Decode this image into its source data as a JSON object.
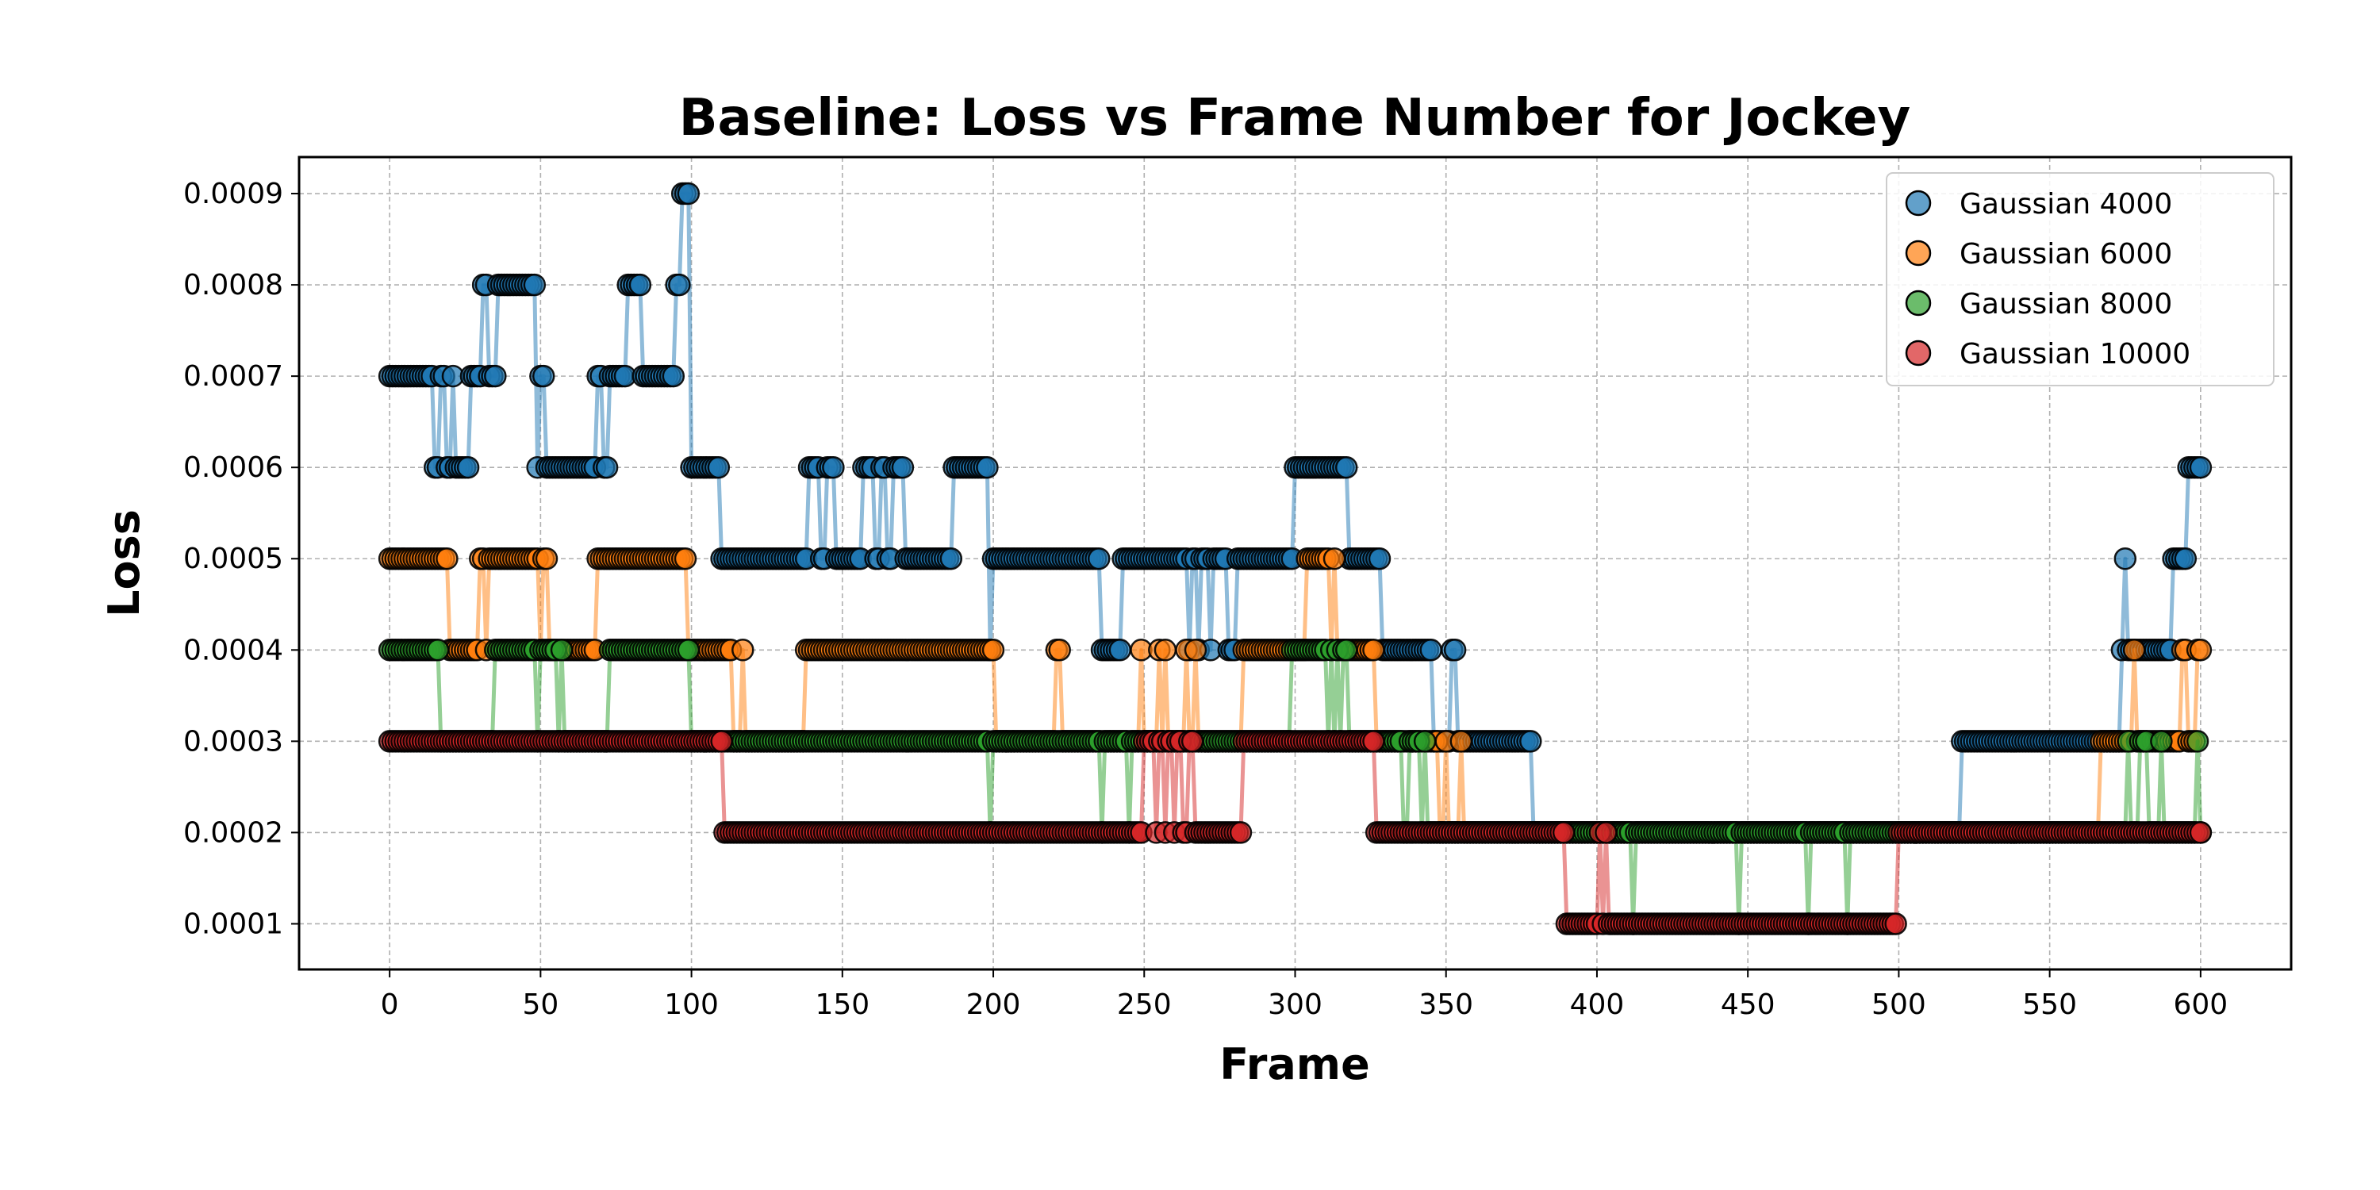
{
  "chart_data": {
    "type": "scatter",
    "title": "Baseline: Loss vs Frame Number for Jockey",
    "xlabel": "Frame",
    "ylabel": "Loss",
    "xlim": [
      -30,
      630
    ],
    "ylim": [
      5e-05,
      0.00094
    ],
    "xticks": [
      0,
      50,
      100,
      150,
      200,
      250,
      300,
      350,
      400,
      450,
      500,
      550,
      600
    ],
    "yticks": [
      0.0001,
      0.0002,
      0.0003,
      0.0004,
      0.0005,
      0.0006,
      0.0007,
      0.0008,
      0.0009
    ],
    "ytick_labels": [
      "0.0001",
      "0.0002",
      "0.0003",
      "0.0004",
      "0.0005",
      "0.0006",
      "0.0007",
      "0.0008",
      "0.0009"
    ],
    "grid": true,
    "legend_position": "top-right",
    "series": [
      {
        "name": "Gaussian 4000",
        "color": "#1f77b4",
        "segments": [
          [
            0,
            14,
            0.0007
          ],
          [
            15,
            16,
            0.0006
          ],
          [
            17,
            18,
            0.0007
          ],
          [
            19,
            20,
            0.0006
          ],
          [
            21,
            21,
            0.0007
          ],
          [
            22,
            26,
            0.0006
          ],
          [
            27,
            30,
            0.0007
          ],
          [
            31,
            32,
            0.0008
          ],
          [
            33,
            35,
            0.0007
          ],
          [
            36,
            48,
            0.0008
          ],
          [
            49,
            49,
            0.0006
          ],
          [
            50,
            51,
            0.0007
          ],
          [
            52,
            68,
            0.0006
          ],
          [
            69,
            70,
            0.0007
          ],
          [
            71,
            72,
            0.0006
          ],
          [
            73,
            78,
            0.0007
          ],
          [
            79,
            83,
            0.0008
          ],
          [
            84,
            94,
            0.0007
          ],
          [
            95,
            96,
            0.0008
          ],
          [
            97,
            99,
            0.0009
          ],
          [
            100,
            109,
            0.0006
          ],
          [
            110,
            138,
            0.0005
          ],
          [
            139,
            142,
            0.0006
          ],
          [
            143,
            144,
            0.0005
          ],
          [
            145,
            147,
            0.0006
          ],
          [
            148,
            156,
            0.0005
          ],
          [
            157,
            160,
            0.0006
          ],
          [
            161,
            162,
            0.0005
          ],
          [
            163,
            164,
            0.0006
          ],
          [
            165,
            166,
            0.0005
          ],
          [
            167,
            170,
            0.0006
          ],
          [
            171,
            186,
            0.0005
          ],
          [
            187,
            198,
            0.0006
          ],
          [
            199,
            199,
            0.0004
          ],
          [
            200,
            235,
            0.0005
          ],
          [
            236,
            242,
            0.0004
          ],
          [
            243,
            264,
            0.0005
          ],
          [
            265,
            265,
            0.0004
          ],
          [
            266,
            267,
            0.0005
          ],
          [
            268,
            268,
            0.0004
          ],
          [
            269,
            271,
            0.0005
          ],
          [
            272,
            272,
            0.0004
          ],
          [
            273,
            277,
            0.0005
          ],
          [
            278,
            280,
            0.0004
          ],
          [
            281,
            299,
            0.0005
          ],
          [
            300,
            317,
            0.0006
          ],
          [
            318,
            328,
            0.0005
          ],
          [
            329,
            345,
            0.0004
          ],
          [
            346,
            351,
            0.0003
          ],
          [
            352,
            353,
            0.0004
          ],
          [
            354,
            378,
            0.0003
          ],
          [
            379,
            520,
            0.0002
          ],
          [
            521,
            573,
            0.0003
          ],
          [
            574,
            574,
            0.0004
          ],
          [
            575,
            575,
            0.0005
          ],
          [
            576,
            590,
            0.0004
          ],
          [
            591,
            595,
            0.0005
          ],
          [
            596,
            600,
            0.0006
          ]
        ]
      },
      {
        "name": "Gaussian 6000",
        "color": "#ff7f0e",
        "segments": [
          [
            0,
            19,
            0.0005
          ],
          [
            20,
            29,
            0.0004
          ],
          [
            30,
            31,
            0.0005
          ],
          [
            32,
            32,
            0.0004
          ],
          [
            33,
            49,
            0.0005
          ],
          [
            50,
            50,
            0.0004
          ],
          [
            51,
            52,
            0.0005
          ],
          [
            53,
            68,
            0.0004
          ],
          [
            69,
            98,
            0.0005
          ],
          [
            99,
            99,
            0.0004
          ],
          [
            100,
            113,
            0.0004
          ],
          [
            114,
            116,
            0.0003
          ],
          [
            117,
            117,
            0.0004
          ],
          [
            118,
            137,
            0.0003
          ],
          [
            138,
            200,
            0.0004
          ],
          [
            201,
            220,
            0.0003
          ],
          [
            221,
            222,
            0.0004
          ],
          [
            223,
            248,
            0.0003
          ],
          [
            249,
            249,
            0.0004
          ],
          [
            250,
            254,
            0.0003
          ],
          [
            255,
            255,
            0.0004
          ],
          [
            256,
            256,
            0.0003
          ],
          [
            257,
            257,
            0.0004
          ],
          [
            258,
            263,
            0.0003
          ],
          [
            264,
            264,
            0.0004
          ],
          [
            265,
            266,
            0.0003
          ],
          [
            267,
            267,
            0.0004
          ],
          [
            268,
            282,
            0.0003
          ],
          [
            283,
            303,
            0.0004
          ],
          [
            304,
            311,
            0.0005
          ],
          [
            312,
            312,
            0.0004
          ],
          [
            313,
            313,
            0.0005
          ],
          [
            314,
            326,
            0.0004
          ],
          [
            327,
            327,
            0.0003
          ],
          [
            328,
            347,
            0.0003
          ],
          [
            348,
            349,
            0.0002
          ],
          [
            350,
            350,
            0.0003
          ],
          [
            351,
            354,
            0.0002
          ],
          [
            355,
            355,
            0.0003
          ],
          [
            356,
            566,
            0.0002
          ],
          [
            567,
            577,
            0.0003
          ],
          [
            578,
            578,
            0.0004
          ],
          [
            579,
            593,
            0.0003
          ],
          [
            594,
            595,
            0.0004
          ],
          [
            596,
            598,
            0.0003
          ],
          [
            599,
            600,
            0.0004
          ]
        ]
      },
      {
        "name": "Gaussian 8000",
        "color": "#2ca02c",
        "segments": [
          [
            0,
            16,
            0.0004
          ],
          [
            17,
            34,
            0.0003
          ],
          [
            35,
            48,
            0.0004
          ],
          [
            49,
            49,
            0.0003
          ],
          [
            50,
            55,
            0.0004
          ],
          [
            56,
            56,
            0.0003
          ],
          [
            57,
            57,
            0.0004
          ],
          [
            58,
            72,
            0.0003
          ],
          [
            73,
            99,
            0.0004
          ],
          [
            100,
            198,
            0.0003
          ],
          [
            199,
            199,
            0.0002
          ],
          [
            200,
            235,
            0.0003
          ],
          [
            236,
            236,
            0.0002
          ],
          [
            237,
            244,
            0.0003
          ],
          [
            245,
            245,
            0.0002
          ],
          [
            246,
            298,
            0.0003
          ],
          [
            299,
            310,
            0.0004
          ],
          [
            311,
            311,
            0.0003
          ],
          [
            312,
            312,
            0.0004
          ],
          [
            313,
            313,
            0.0003
          ],
          [
            314,
            314,
            0.0004
          ],
          [
            315,
            315,
            0.0003
          ],
          [
            316,
            317,
            0.0004
          ],
          [
            318,
            335,
            0.0003
          ],
          [
            336,
            337,
            0.0002
          ],
          [
            338,
            341,
            0.0003
          ],
          [
            342,
            342,
            0.0002
          ],
          [
            343,
            343,
            0.0003
          ],
          [
            344,
            411,
            0.0002
          ],
          [
            412,
            412,
            0.0001
          ],
          [
            413,
            446,
            0.0002
          ],
          [
            447,
            447,
            0.0001
          ],
          [
            448,
            469,
            0.0002
          ],
          [
            470,
            470,
            0.0001
          ],
          [
            471,
            482,
            0.0002
          ],
          [
            483,
            483,
            0.0001
          ],
          [
            484,
            575,
            0.0002
          ],
          [
            576,
            576,
            0.0003
          ],
          [
            577,
            579,
            0.0002
          ],
          [
            580,
            582,
            0.0003
          ],
          [
            583,
            586,
            0.0002
          ],
          [
            587,
            587,
            0.0003
          ],
          [
            588,
            598,
            0.0002
          ],
          [
            599,
            599,
            0.0003
          ],
          [
            600,
            600,
            0.0002
          ]
        ]
      },
      {
        "name": "Gaussian 10000",
        "color": "#d62728",
        "segments": [
          [
            0,
            110,
            0.0003
          ],
          [
            111,
            249,
            0.0002
          ],
          [
            250,
            253,
            0.0003
          ],
          [
            254,
            254,
            0.0002
          ],
          [
            255,
            256,
            0.0003
          ],
          [
            257,
            257,
            0.0002
          ],
          [
            258,
            259,
            0.0003
          ],
          [
            260,
            260,
            0.0002
          ],
          [
            261,
            262,
            0.0003
          ],
          [
            263,
            264,
            0.0002
          ],
          [
            265,
            266,
            0.0003
          ],
          [
            267,
            282,
            0.0002
          ],
          [
            283,
            326,
            0.0003
          ],
          [
            327,
            389,
            0.0002
          ],
          [
            390,
            400,
            0.0001
          ],
          [
            401,
            401,
            0.0002
          ],
          [
            402,
            402,
            0.0001
          ],
          [
            403,
            403,
            0.0002
          ],
          [
            404,
            499,
            0.0001
          ],
          [
            500,
            600,
            0.0002
          ]
        ]
      }
    ]
  }
}
